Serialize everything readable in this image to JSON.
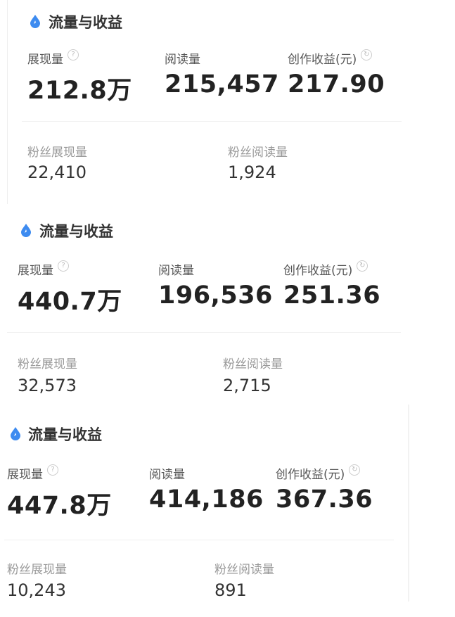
{
  "panels": [
    {
      "title": "流量与收益",
      "impressions_label": "展现量",
      "impressions": "212.8万",
      "reads_label": "阅读量",
      "reads": "215,457",
      "earnings_label": "创作收益(元)",
      "earnings": "217.90",
      "fan_impressions_label": "粉丝展现量",
      "fan_impressions": "22,410",
      "fan_reads_label": "粉丝阅读量",
      "fan_reads": "1,924"
    },
    {
      "title": "流量与收益",
      "impressions_label": "展现量",
      "impressions": "440.7万",
      "reads_label": "阅读量",
      "reads": "196,536",
      "earnings_label": "创作收益(元)",
      "earnings": "251.36",
      "fan_impressions_label": "粉丝展现量",
      "fan_impressions": "32,573",
      "fan_reads_label": "粉丝阅读量",
      "fan_reads": "2,715"
    },
    {
      "title": "流量与收益",
      "impressions_label": "展现量",
      "impressions": "447.8万",
      "reads_label": "阅读量",
      "reads": "414,186",
      "earnings_label": "创作收益(元)",
      "earnings": "367.36",
      "fan_impressions_label": "粉丝展现量",
      "fan_impressions": "10,243",
      "fan_reads_label": "粉丝阅读量",
      "fan_reads": "891"
    }
  ],
  "icons": {
    "title": "water-drop-icon",
    "help": "question-circle-icon",
    "refresh": "refresh-icon"
  },
  "colors": {
    "accent": "#3d8bf0"
  }
}
